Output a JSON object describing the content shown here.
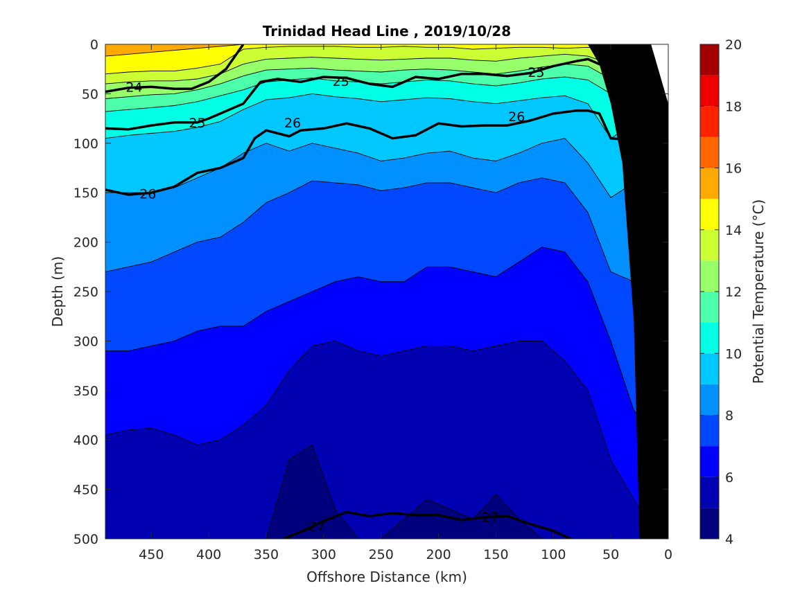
{
  "chart_data": {
    "type": "contourf",
    "title": "Trinidad Head Line , 2019/10/28",
    "xlabel": "Offshore Distance (km)",
    "ylabel": "Depth (m)",
    "xlim": [
      490,
      0
    ],
    "x_reversed": true,
    "ylim": [
      0,
      500
    ],
    "y_reversed": true,
    "xticks": [
      "450",
      "400",
      "350",
      "300",
      "250",
      "200",
      "150",
      "100",
      "50",
      "0"
    ],
    "yticks": [
      "0",
      "50",
      "100",
      "150",
      "200",
      "250",
      "300",
      "350",
      "400",
      "450",
      "500"
    ],
    "colorbar": {
      "label": "Potential Temperature (°C)",
      "range": [
        4,
        20
      ],
      "step": 1,
      "ticks": [
        "4",
        "6",
        "8",
        "10",
        "12",
        "14",
        "16",
        "18",
        "20"
      ],
      "colors": [
        "#00007f",
        "#0000b2",
        "#0000ff",
        "#0048ff",
        "#0090ff",
        "#00c8ff",
        "#00ffe4",
        "#4cffaa",
        "#96ff6a",
        "#ccff33",
        "#ffff00",
        "#ffaa00",
        "#ff6600",
        "#ff2200",
        "#ee0000",
        "#a40000"
      ]
    },
    "temperature_contours": {
      "levels": [
        15,
        14,
        13,
        12,
        11,
        10,
        9,
        8,
        7,
        6,
        5
      ],
      "x": [
        490,
        470,
        450,
        430,
        410,
        390,
        370,
        350,
        330,
        310,
        290,
        270,
        250,
        230,
        210,
        190,
        170,
        150,
        130,
        110,
        90,
        70,
        50,
        30,
        10
      ],
      "depths": [
        [
          12,
          10,
          8,
          6,
          4,
          2,
          0,
          0,
          0,
          0,
          0,
          0,
          0,
          0,
          0,
          0,
          0,
          0,
          0,
          0,
          0,
          0,
          0,
          0,
          0
        ],
        [
          30,
          28,
          27,
          27,
          24,
          20,
          5,
          3,
          2,
          2,
          2,
          3,
          3,
          2,
          3,
          3,
          5,
          4,
          3,
          3,
          4,
          3,
          5,
          10,
          8
        ],
        [
          40,
          38,
          37,
          37,
          35,
          30,
          20,
          15,
          14,
          13,
          14,
          15,
          16,
          15,
          14,
          14,
          16,
          17,
          14,
          12,
          10,
          12,
          20,
          22,
          15
        ],
        [
          55,
          53,
          51,
          50,
          46,
          40,
          32,
          26,
          25,
          24,
          26,
          27,
          28,
          26,
          25,
          26,
          28,
          30,
          27,
          23,
          20,
          22,
          35,
          34,
          25
        ],
        [
          68,
          66,
          64,
          62,
          58,
          52,
          46,
          38,
          36,
          34,
          37,
          38,
          40,
          38,
          36,
          37,
          40,
          42,
          39,
          35,
          33,
          36,
          50,
          46,
          38
        ],
        [
          95,
          92,
          90,
          88,
          84,
          78,
          66,
          56,
          54,
          50,
          53,
          55,
          58,
          56,
          54,
          55,
          58,
          60,
          57,
          54,
          52,
          60,
          95,
          80,
          60
        ],
        [
          150,
          150,
          150,
          145,
          135,
          125,
          110,
          100,
          108,
          100,
          105,
          110,
          118,
          115,
          110,
          108,
          115,
          118,
          110,
          100,
          95,
          120,
          155,
          140,
          120
        ],
        [
          230,
          225,
          220,
          210,
          200,
          195,
          180,
          160,
          150,
          138,
          140,
          142,
          148,
          145,
          140,
          140,
          145,
          150,
          140,
          135,
          140,
          170,
          230,
          240,
          200
        ],
        [
          310,
          310,
          305,
          300,
          290,
          285,
          285,
          270,
          260,
          250,
          240,
          235,
          240,
          240,
          225,
          225,
          230,
          235,
          220,
          205,
          210,
          240,
          300,
          370,
          400
        ],
        [
          395,
          390,
          388,
          395,
          405,
          400,
          385,
          365,
          330,
          305,
          300,
          310,
          315,
          310,
          305,
          305,
          310,
          305,
          300,
          300,
          320,
          350,
          420,
          460,
          500
        ],
        [
          500,
          500,
          500,
          500,
          500,
          500,
          500,
          500,
          420,
          405,
          470,
          500,
          500,
          480,
          460,
          470,
          480,
          455,
          480,
          500,
          500,
          500,
          500,
          500,
          500
        ]
      ]
    },
    "density_contours": [
      {
        "label": "24",
        "thick": true,
        "x": [
          490,
          470,
          450,
          430,
          415,
          400,
          385,
          370
        ],
        "y": [
          48,
          44,
          43,
          45,
          45,
          38,
          25,
          0
        ]
      },
      {
        "label": "25",
        "thick": true,
        "x": [
          490,
          470,
          450,
          430,
          410,
          400,
          390,
          370,
          355,
          340,
          320,
          300,
          280,
          260,
          240,
          220,
          200,
          180,
          160,
          140,
          120,
          100,
          80,
          70,
          60,
          50,
          40,
          30,
          20,
          10
        ],
        "y": [
          85,
          86,
          82,
          79,
          79,
          75,
          70,
          60,
          38,
          35,
          38,
          33,
          34,
          40,
          43,
          33,
          35,
          30,
          30,
          32,
          29,
          22,
          17,
          15,
          20,
          25,
          35,
          32,
          28,
          20
        ]
      },
      {
        "label": "26",
        "thick": true,
        "x": [
          490,
          470,
          450,
          430,
          410,
          390,
          370,
          360,
          350,
          340,
          330,
          320,
          300,
          280,
          260,
          240,
          220,
          200,
          180,
          160,
          140,
          120,
          100,
          80,
          70,
          60,
          50,
          40,
          30,
          20,
          10
        ],
        "y": [
          147,
          152,
          150,
          144,
          130,
          125,
          115,
          95,
          87,
          90,
          93,
          87,
          85,
          80,
          85,
          95,
          92,
          80,
          83,
          82,
          82,
          77,
          70,
          67,
          67,
          70,
          95,
          96,
          88,
          80,
          70
        ]
      },
      {
        "label": "27",
        "thick": true,
        "x": [
          335,
          320,
          300,
          280,
          260,
          240,
          220,
          200,
          180,
          160,
          140,
          120,
          100,
          85
        ],
        "y": [
          500,
          493,
          482,
          473,
          477,
          474,
          476,
          476,
          481,
          478,
          477,
          485,
          492,
          500
        ]
      }
    ],
    "density_labels": [
      {
        "text": "24",
        "x": 465,
        "y": 43
      },
      {
        "text": "25",
        "x": 285,
        "y": 37
      },
      {
        "text": "25",
        "x": 410,
        "y": 79
      },
      {
        "text": "25",
        "x": 115,
        "y": 28
      },
      {
        "text": "26",
        "x": 327,
        "y": 79
      },
      {
        "text": "26",
        "x": 453,
        "y": 151
      },
      {
        "text": "26",
        "x": 132,
        "y": 73
      },
      {
        "text": "27",
        "x": 306,
        "y": 487
      },
      {
        "text": "27",
        "x": 155,
        "y": 478
      }
    ],
    "bathymetry": {
      "x": [
        0,
        0,
        25,
        30,
        40,
        50,
        60,
        70,
        80,
        90
      ],
      "y": [
        0,
        500,
        500,
        280,
        120,
        60,
        20,
        0,
        0,
        0
      ]
    },
    "grid": false
  }
}
